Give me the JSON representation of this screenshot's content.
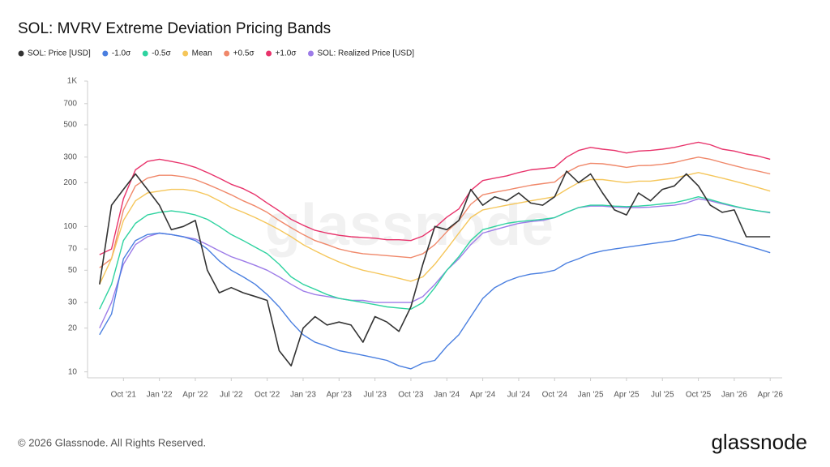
{
  "chart_data": {
    "type": "line",
    "title": "SOL: MVRV Extreme Deviation Pricing Bands",
    "watermark": "glassnode",
    "footer": "© 2026 Glassnode. All Rights Reserved.",
    "logo": "glassnode",
    "log_scale": true,
    "grid": false,
    "legend_position": "top",
    "x": [
      "2021-08",
      "2021-09",
      "2021-10",
      "2021-11",
      "2021-12",
      "2022-01",
      "2022-02",
      "2022-03",
      "2022-04",
      "2022-05",
      "2022-06",
      "2022-07",
      "2022-08",
      "2022-09",
      "2022-10",
      "2022-11",
      "2022-12",
      "2023-01",
      "2023-02",
      "2023-03",
      "2023-04",
      "2023-05",
      "2023-06",
      "2023-07",
      "2023-08",
      "2023-09",
      "2023-10",
      "2023-11",
      "2023-12",
      "2024-01",
      "2024-02",
      "2024-03",
      "2024-04",
      "2024-05",
      "2024-06",
      "2024-07",
      "2024-08",
      "2024-09",
      "2024-10",
      "2024-11",
      "2024-12",
      "2025-01",
      "2025-02",
      "2025-03",
      "2025-04",
      "2025-05",
      "2025-06",
      "2025-07",
      "2025-08",
      "2025-09",
      "2025-10",
      "2025-11",
      "2025-12",
      "2026-01",
      "2026-02",
      "2026-03",
      "2026-04"
    ],
    "xlim": [
      "2021-07",
      "2026-05"
    ],
    "xticks": [
      {
        "value": "2021-10",
        "label": "Oct '21"
      },
      {
        "value": "2022-01",
        "label": "Jan '22"
      },
      {
        "value": "2022-04",
        "label": "Apr '22"
      },
      {
        "value": "2022-07",
        "label": "Jul '22"
      },
      {
        "value": "2022-10",
        "label": "Oct '22"
      },
      {
        "value": "2023-01",
        "label": "Jan '23"
      },
      {
        "value": "2023-04",
        "label": "Apr '23"
      },
      {
        "value": "2023-07",
        "label": "Jul '23"
      },
      {
        "value": "2023-10",
        "label": "Oct '23"
      },
      {
        "value": "2024-01",
        "label": "Jan '24"
      },
      {
        "value": "2024-04",
        "label": "Apr '24"
      },
      {
        "value": "2024-07",
        "label": "Jul '24"
      },
      {
        "value": "2024-10",
        "label": "Oct '24"
      },
      {
        "value": "2025-01",
        "label": "Jan '25"
      },
      {
        "value": "2025-04",
        "label": "Apr '25"
      },
      {
        "value": "2025-07",
        "label": "Jul '25"
      },
      {
        "value": "2025-10",
        "label": "Oct '25"
      },
      {
        "value": "2026-01",
        "label": "Jan '26"
      },
      {
        "value": "2026-04",
        "label": "Apr '26"
      }
    ],
    "ylim": [
      9.1,
      1000
    ],
    "yticks": [
      10,
      20,
      30,
      50,
      70,
      100,
      200,
      300,
      500,
      700,
      {
        "value": 1000,
        "label": "1K"
      }
    ],
    "series": [
      {
        "name": "SOL: Price [USD]",
        "color": "#333333",
        "values": [
          40,
          140,
          180,
          230,
          180,
          140,
          95,
          100,
          110,
          50,
          35,
          38,
          35,
          33,
          31,
          14,
          11,
          20,
          24,
          21,
          22,
          21,
          16,
          24,
          22,
          19,
          28,
          55,
          100,
          95,
          110,
          180,
          140,
          160,
          150,
          170,
          145,
          140,
          160,
          240,
          200,
          230,
          170,
          130,
          120,
          170,
          150,
          180,
          190,
          230,
          190,
          140,
          125,
          130,
          85,
          85,
          85
        ]
      },
      {
        "name": "-1.0σ",
        "color": "#4a7fe0",
        "values": [
          18,
          25,
          60,
          80,
          88,
          90,
          88,
          85,
          80,
          70,
          58,
          50,
          45,
          40,
          34,
          28,
          22,
          18,
          16,
          15,
          14,
          13.5,
          13,
          12.5,
          12,
          11,
          10.5,
          11.5,
          12,
          15,
          18,
          24,
          32,
          38,
          42,
          45,
          47,
          48,
          50,
          56,
          60,
          65,
          68,
          70,
          72,
          74,
          76,
          78,
          80,
          84,
          88,
          86,
          82,
          78,
          74,
          70,
          66
        ]
      },
      {
        "name": "-0.5σ",
        "color": "#2fd3a0",
        "values": [
          27,
          40,
          80,
          105,
          120,
          125,
          128,
          125,
          120,
          112,
          100,
          88,
          80,
          72,
          65,
          55,
          45,
          40,
          37,
          34,
          32,
          31,
          30,
          29,
          28,
          27.5,
          27,
          30,
          38,
          50,
          62,
          80,
          95,
          100,
          105,
          108,
          110,
          112,
          115,
          125,
          135,
          140,
          140,
          138,
          137,
          138,
          140,
          143,
          146,
          152,
          160,
          153,
          145,
          138,
          132,
          128,
          125
        ]
      },
      {
        "name": "Mean",
        "color": "#f5c65a",
        "values": [
          40,
          60,
          110,
          150,
          170,
          175,
          180,
          180,
          175,
          165,
          150,
          135,
          125,
          115,
          105,
          95,
          85,
          75,
          68,
          62,
          57,
          53,
          50,
          48,
          46,
          44,
          42,
          45,
          55,
          70,
          90,
          115,
          130,
          135,
          140,
          145,
          150,
          155,
          160,
          180,
          200,
          210,
          210,
          205,
          200,
          205,
          205,
          210,
          215,
          225,
          235,
          225,
          215,
          205,
          195,
          185,
          175
        ]
      },
      {
        "name": "+0.5σ",
        "color": "#f0886a",
        "values": [
          52,
          60,
          130,
          190,
          215,
          225,
          225,
          220,
          210,
          195,
          180,
          165,
          150,
          138,
          125,
          110,
          98,
          88,
          80,
          75,
          70,
          67,
          65,
          64,
          63,
          62,
          61,
          65,
          75,
          92,
          110,
          142,
          165,
          172,
          178,
          185,
          192,
          197,
          202,
          235,
          260,
          272,
          270,
          263,
          255,
          262,
          263,
          268,
          275,
          288,
          300,
          290,
          275,
          262,
          250,
          240,
          230
        ]
      },
      {
        "name": "+1.0σ",
        "color": "#e8336b",
        "values": [
          64,
          70,
          155,
          245,
          280,
          290,
          280,
          270,
          255,
          235,
          215,
          195,
          182,
          165,
          145,
          128,
          112,
          102,
          94,
          90,
          87,
          85,
          84,
          83,
          81,
          81,
          80,
          86,
          98,
          116,
          132,
          177,
          207,
          215,
          223,
          235,
          245,
          250,
          255,
          300,
          333,
          350,
          340,
          333,
          320,
          330,
          333,
          340,
          350,
          365,
          380,
          365,
          340,
          330,
          315,
          305,
          290
        ]
      },
      {
        "name": "SOL: Realized Price [USD]",
        "color": "#9d7ce8",
        "values": [
          20,
          30,
          55,
          75,
          85,
          90,
          88,
          85,
          82,
          75,
          68,
          62,
          58,
          54,
          50,
          45,
          40,
          36,
          34,
          33,
          32,
          31,
          31,
          30,
          30,
          30,
          30,
          33,
          40,
          50,
          60,
          75,
          90,
          95,
          100,
          105,
          108,
          110,
          115,
          125,
          135,
          138,
          138,
          136,
          135,
          135,
          136,
          138,
          140,
          145,
          155,
          150,
          143,
          137,
          132,
          128,
          124
        ]
      }
    ]
  }
}
